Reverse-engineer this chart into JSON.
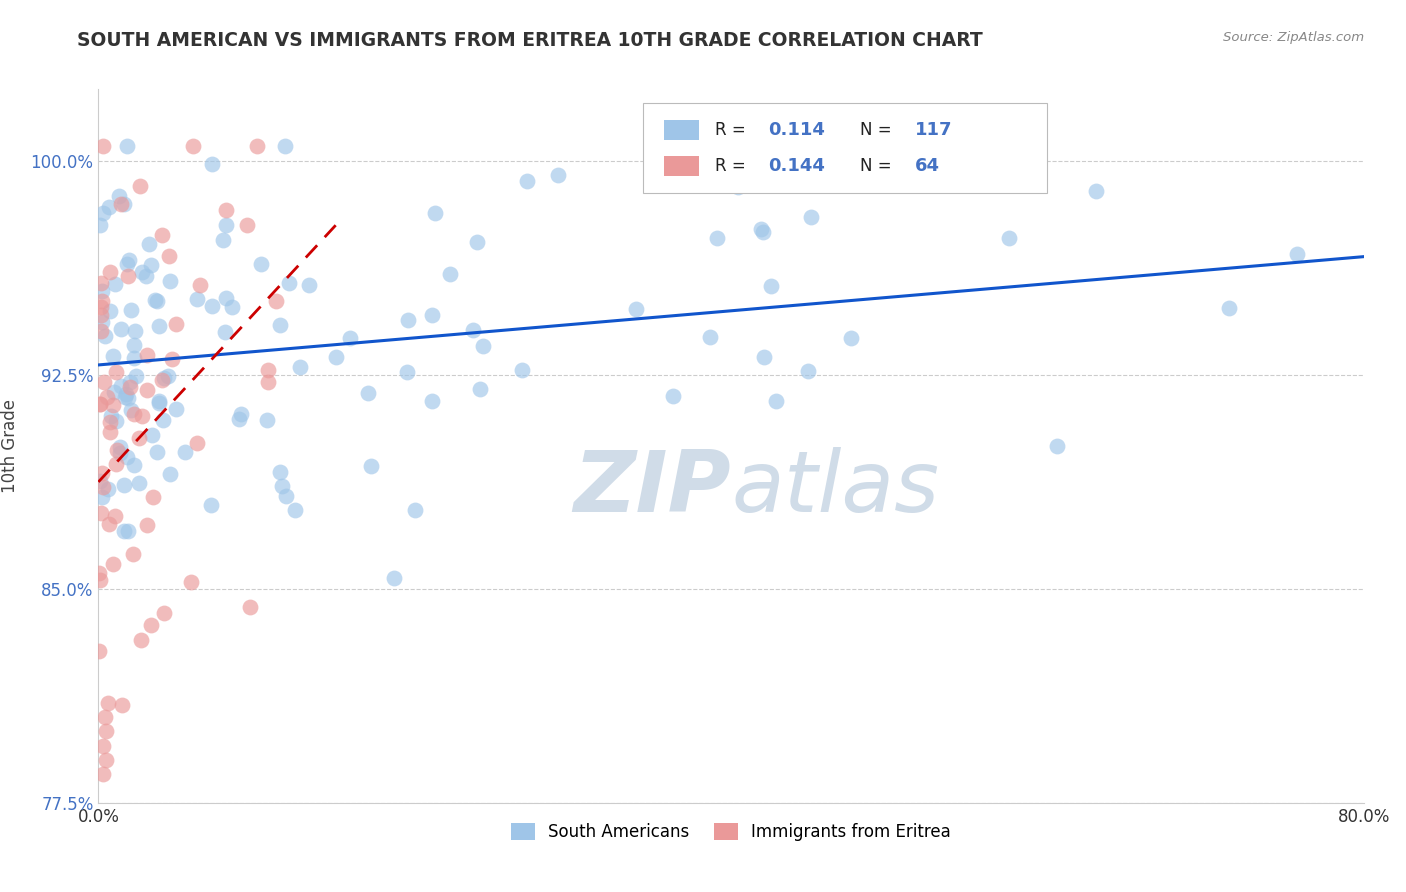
{
  "title": "SOUTH AMERICAN VS IMMIGRANTS FROM ERITREA 10TH GRADE CORRELATION CHART",
  "source_text": "Source: ZipAtlas.com",
  "ylabel": "10th Grade",
  "xlim": [
    0.0,
    80.0
  ],
  "ylim": [
    77.5,
    102.5
  ],
  "yticks": [
    77.5,
    85.0,
    92.5,
    100.0
  ],
  "ytick_labels": [
    "77.5%",
    "85.0%",
    "92.5%",
    "100.0%"
  ],
  "xtick_labels": [
    "0.0%",
    "80.0%"
  ],
  "blue_R": 0.114,
  "blue_N": 117,
  "pink_R": 0.144,
  "pink_N": 64,
  "blue_color": "#9fc5e8",
  "pink_color": "#ea9999",
  "blue_line_color": "#1155cc",
  "pink_line_color": "#cc0000",
  "tick_color": "#4472c4",
  "watermark_color": "#d0dce8",
  "grid_color": "#cccccc",
  "title_color": "#333333",
  "source_color": "#888888"
}
